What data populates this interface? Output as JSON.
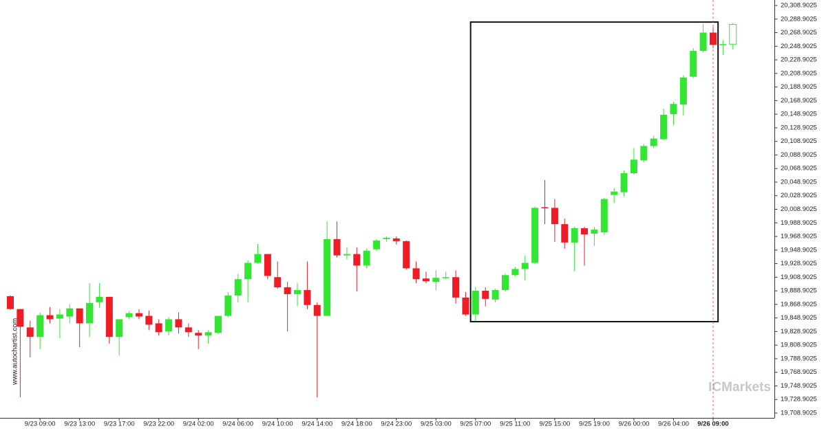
{
  "chart_data": {
    "type": "candlestick",
    "watermark": "www.autochartist.com",
    "logo": "ICMarkets",
    "categories": [
      null,
      null,
      null,
      "9/23 09:00",
      null,
      null,
      null,
      "9/23 13:00",
      null,
      null,
      null,
      "9/23 17:00",
      null,
      null,
      null,
      "9/23 22:00",
      null,
      null,
      null,
      "9/24 02:00",
      null,
      null,
      null,
      "9/24 06:00",
      null,
      null,
      null,
      "9/24 10:00",
      null,
      null,
      null,
      "9/24 14:00",
      null,
      null,
      null,
      "9/24 18:00",
      null,
      null,
      null,
      "9/24 23:00",
      null,
      null,
      null,
      "9/25 03:00",
      null,
      null,
      null,
      "9/25 07:00",
      null,
      null,
      null,
      "9/25 11:00",
      null,
      null,
      null,
      "9/25 15:00",
      null,
      null,
      null,
      "9/25 19:00",
      null,
      null,
      null,
      "9/26 00:00",
      null,
      null,
      null,
      "9/26 04:00",
      null,
      null,
      null,
      "9/26 09:00",
      null,
      null
    ],
    "open": [
      19881,
      19862,
      19835,
      19821,
      19853,
      19848,
      19851,
      19863,
      19841,
      19872,
      19880,
      19821,
      19850,
      19856,
      19852,
      19841,
      19829,
      19847,
      19835,
      19827,
      19823,
      19827,
      19852,
      19882,
      19906,
      19930,
      19943,
      19909,
      19894,
      19884,
      19890,
      19868,
      19852,
      19965,
      19941,
      19943,
      19926,
      19950,
      19965,
      19966,
      19962,
      19922,
      19907,
      19902,
      19908,
      19909,
      19879,
      19854,
      19889,
      19876,
      19890,
      19912,
      19921,
      19930,
      20012,
      20011,
      19987,
      19960,
      19981,
      19973,
      19975,
      20030,
      20034,
      20062,
      20081,
      20102,
      20112,
      20149,
      20163,
      20204,
      20242,
      20269,
      20252,
      20252
    ],
    "high": [
      19882,
      19862,
      19845,
      19857,
      19865,
      19862,
      19869,
      19863,
      19900,
      19900,
      19880,
      19847,
      19859,
      19862,
      19860,
      19847,
      19850,
      19857,
      19841,
      19831,
      19831,
      19852,
      19887,
      19914,
      19934,
      19958,
      19943,
      19932,
      19902,
      19900,
      19932,
      19872,
      19991,
      19991,
      19953,
      19953,
      19951,
      19965,
      19969,
      19969,
      19963,
      19932,
      19917,
      19919,
      19917,
      19919,
      19887,
      19894,
      19894,
      19892,
      19914,
      19924,
      19941,
      20013,
      20052,
      20024,
      19995,
      19983,
      19983,
      19983,
      20026,
      20040,
      20066,
      20099,
      20105,
      20117,
      20157,
      20167,
      20206,
      20246,
      20282,
      20277,
      20258,
      20283
    ],
    "low": [
      19861,
      19732,
      19791,
      19803,
      19841,
      19819,
      19841,
      19806,
      19821,
      19864,
      19811,
      19794,
      19847,
      19847,
      19831,
      19823,
      19823,
      19826,
      19821,
      19803,
      19811,
      19825,
      19850,
      19872,
      19872,
      19929,
      19906,
      19892,
      19829,
      19866,
      19862,
      19732,
      19852,
      19938,
      19935,
      19888,
      19922,
      19947,
      19961,
      19957,
      19920,
      19900,
      19900,
      19890,
      19906,
      19870,
      19852,
      19844,
      19866,
      19872,
      19888,
      19910,
      19904,
      19928,
      19987,
      19961,
      19951,
      19918,
      19926,
      19955,
      19971,
      20018,
      20028,
      20060,
      20078,
      20099,
      20111,
      20133,
      20147,
      20202,
      20240,
      20246,
      20236,
      20244
    ],
    "close": [
      19862,
      19836,
      19821,
      19853,
      19847,
      19854,
      19863,
      19841,
      19871,
      19880,
      19821,
      19847,
      19856,
      19851,
      19839,
      19828,
      19847,
      19835,
      19828,
      19823,
      19828,
      19852,
      19882,
      19906,
      19930,
      19943,
      19911,
      19894,
      19884,
      19890,
      19868,
      19852,
      19965,
      19941,
      19943,
      19926,
      19948,
      19963,
      19967,
      19962,
      19922,
      19906,
      19903,
      19908,
      19909,
      19879,
      19854,
      19889,
      19877,
      19890,
      19912,
      19921,
      19930,
      20011,
      20011,
      19987,
      19960,
      19981,
      19972,
      19979,
      20024,
      20035,
      20062,
      20082,
      20102,
      20113,
      20148,
      20164,
      20203,
      20242,
      20269,
      20251,
      20252,
      20281
    ],
    "up_color": "#33e633",
    "down_color": "#ee1c25",
    "last_candle_hollow": true,
    "pattern_box": {
      "from": "9/25 07:00",
      "to": "9/26 09:00",
      "top": 20284.5,
      "bottom": 19843.5
    },
    "now": "9/26 09:00",
    "ylim": [
      19708.9025,
      20308.9025
    ],
    "yticks": [
      {
        "value": 19708.9025,
        "label": "19,708.9025"
      },
      {
        "value": 19728.9025,
        "label": "19,728.9025"
      },
      {
        "value": 19748.9025,
        "label": "19,748.9025"
      },
      {
        "value": 19768.9025,
        "label": "19,768.9025"
      },
      {
        "value": 19788.9025,
        "label": "19,788.9025"
      },
      {
        "value": 19808.9025,
        "label": "19,808.9025"
      },
      {
        "value": 19828.9025,
        "label": "19,828.9025"
      },
      {
        "value": 19848.9025,
        "label": "19,848.9025"
      },
      {
        "value": 19868.9025,
        "label": "19,868.9025"
      },
      {
        "value": 19888.9025,
        "label": "19,888.9025"
      },
      {
        "value": 19908.9025,
        "label": "19,908.9025"
      },
      {
        "value": 19928.9025,
        "label": "19,928.9025"
      },
      {
        "value": 19948.9025,
        "label": "19,948.9025"
      },
      {
        "value": 19968.9025,
        "label": "19,968.9025"
      },
      {
        "value": 19988.9025,
        "label": "19,988.9025"
      },
      {
        "value": 20008.9025,
        "label": "20,008.9025"
      },
      {
        "value": 20028.9025,
        "label": "20,028.9025"
      },
      {
        "value": 20048.9025,
        "label": "20,048.9025"
      },
      {
        "value": 20068.9025,
        "label": "20,068.9025"
      },
      {
        "value": 20088.9025,
        "label": "20,088.9025"
      },
      {
        "value": 20108.9025,
        "label": "20,108.9025"
      },
      {
        "value": 20128.9025,
        "label": "20,128.9025"
      },
      {
        "value": 20148.9025,
        "label": "20,148.9025"
      },
      {
        "value": 20168.9025,
        "label": "20,168.9025"
      },
      {
        "value": 20188.9025,
        "label": "20,188.9025"
      },
      {
        "value": 20208.9025,
        "label": "20,208.9025"
      },
      {
        "value": 20228.9025,
        "label": "20,228.9025"
      },
      {
        "value": 20248.9025,
        "label": "20,248.9025"
      },
      {
        "value": 20268.9025,
        "label": "20,268.9025"
      },
      {
        "value": 20288.9025,
        "label": "20,288.9025"
      },
      {
        "value": 20308.9025,
        "label": "20,308.9025"
      }
    ]
  }
}
